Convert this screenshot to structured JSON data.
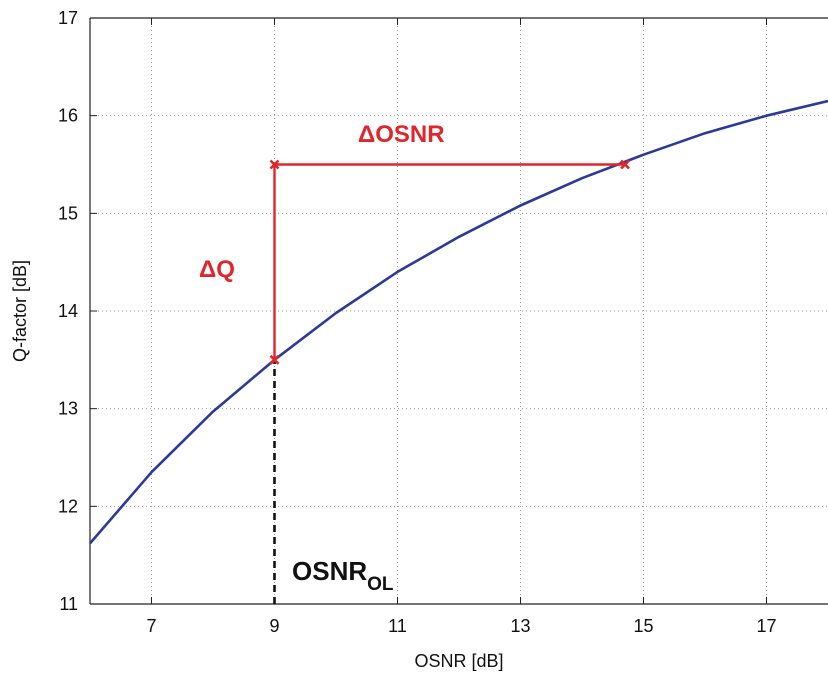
{
  "chart_data": {
    "type": "line",
    "xlabel": "OSNR [dB]",
    "ylabel": "Q-factor [dB]",
    "xlim": [
      6,
      18
    ],
    "ylim": [
      11,
      17
    ],
    "x_ticks": [
      7,
      9,
      11,
      13,
      15,
      17
    ],
    "y_ticks": [
      11,
      12,
      13,
      14,
      15,
      16,
      17
    ],
    "x_tick_labels": [
      "7",
      "9",
      "11",
      "13",
      "15",
      "17"
    ],
    "y_tick_labels": [
      "11",
      "12",
      "13",
      "14",
      "15",
      "16",
      "17"
    ],
    "grid": true,
    "series": [
      {
        "color": "#2b3a9a",
        "x": [
          6,
          7,
          8,
          9,
          10,
          11,
          12,
          13,
          14,
          15,
          16,
          17,
          18
        ],
        "y": [
          11.62,
          12.35,
          12.97,
          13.5,
          13.98,
          14.4,
          14.76,
          15.08,
          15.36,
          15.6,
          15.82,
          16.0,
          16.15
        ]
      }
    ],
    "annotations": {
      "delta_q_line": {
        "x": [
          9,
          9
        ],
        "y": [
          13.5,
          15.5
        ],
        "color": "#e0262a"
      },
      "delta_osnr_line": {
        "x": [
          9,
          14.7
        ],
        "y": [
          15.5,
          15.5
        ],
        "color": "#e0262a"
      },
      "markers": {
        "x": [
          9,
          9,
          14.7
        ],
        "y": [
          13.5,
          15.5,
          15.5
        ],
        "color": "#e0262a"
      },
      "dashed_line": {
        "x": [
          9,
          9
        ],
        "y": [
          11,
          13.5
        ],
        "color": "#111111"
      },
      "delta_q_label": "ΔQ",
      "delta_osnr_label": "ΔOSNR",
      "osnr_ol_label": "OSNR",
      "osnr_ol_subscript": "OL"
    }
  }
}
